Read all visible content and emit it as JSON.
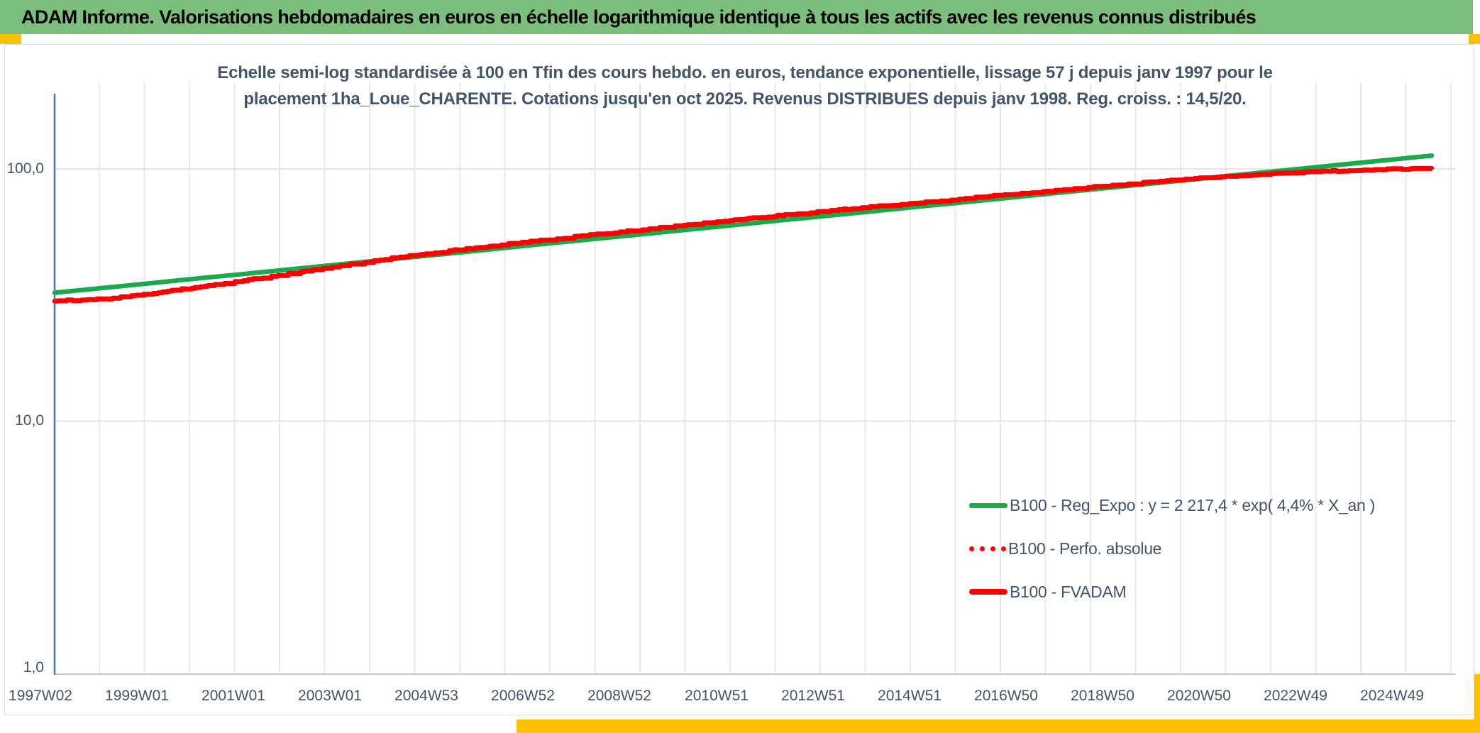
{
  "header": {
    "title": "ADAM Informe. Valorisations hebdomadaires en euros en échelle logarithmique identique à tous les actifs avec les revenus connus distribués"
  },
  "subtitle": {
    "line1": "Echelle semi-log standardisée à 100 en Tfin des cours hebdo. en euros, tendance exponentielle, lissage 57 j depuis janv 1997 pour le",
    "line2": "placement 1ha_Loue_CHARENTE. Cotations jusqu'en oct 2025. Revenus DISTRIBUES depuis janv 1998. Reg. croiss. : 14,5/20."
  },
  "colors": {
    "header_bg": "#7CBE7C",
    "accent_gold": "#FFC000",
    "green_line": "#1BA94C",
    "red_line": "#FF0000",
    "text_dark": "#44546A",
    "axis_blue": "#4472C4",
    "gridline": "#E7EAED"
  },
  "chart_data": {
    "type": "line",
    "y_scale": "log",
    "title": "Echelle semi-log standardisée à 100 en Tfin des cours hebdo. en euros, tendance exponentielle, lissage 57 j depuis janv 1997 pour le placement 1ha_Loue_CHARENTE. Cotations jusqu'en oct 2025. Revenus DISTRIBUES depuis janv 1998. Reg. croiss. : 14,5/20.",
    "xlabel": "",
    "ylabel": "",
    "ylim": [
      1,
      200
    ],
    "grid": "on",
    "legend_position": "inside-lower-right",
    "x_tick_labels": [
      "1997W02",
      "1999W01",
      "2001W01",
      "2003W01",
      "2004W53",
      "2006W52",
      "2008W52",
      "2010W51",
      "2012W51",
      "2014W51",
      "2016W50",
      "2018W50",
      "2020W50",
      "2022W49",
      "2024W49"
    ],
    "y_tick_labels": [
      "100,0",
      "10,0",
      "1,0"
    ],
    "x_years": [
      1997,
      1998,
      1999,
      2000,
      2001,
      2002,
      2003,
      2004,
      2005,
      2006,
      2007,
      2008,
      2009,
      2010,
      2011,
      2012,
      2013,
      2014,
      2015,
      2016,
      2017,
      2018,
      2019,
      2020,
      2021,
      2022,
      2023,
      2024,
      2025,
      2025.8
    ],
    "series": [
      {
        "name": "B100 - Reg_Expo : y = 2 217,4 * exp( 4,4% *  X_an )",
        "color": "#1BA94C",
        "style": "solid",
        "values": [
          32.3,
          33.7,
          35.2,
          36.8,
          38.4,
          40.1,
          41.9,
          43.8,
          45.7,
          47.7,
          49.9,
          52.1,
          54.4,
          56.8,
          59.3,
          62.0,
          64.7,
          67.6,
          70.6,
          73.7,
          77.0,
          80.4,
          84.0,
          87.7,
          91.6,
          95.7,
          99.9,
          104.4,
          109.0,
          112.9
        ]
      },
      {
        "name": "B100 - Perfo. absolue",
        "color": "#FF0000",
        "style": "dotted",
        "values": [
          29.9,
          30.4,
          31.9,
          34.0,
          36.2,
          38.6,
          41.3,
          44.1,
          46.6,
          49.1,
          51.6,
          54.1,
          56.7,
          59.4,
          62.1,
          64.9,
          67.6,
          70.4,
          73.2,
          76.2,
          79.2,
          82.4,
          85.5,
          88.8,
          91.9,
          94.4,
          96.7,
          98.4,
          99.6,
          100.0
        ]
      },
      {
        "name": "B100 - FVADAM",
        "color": "#FF0000",
        "style": "solid-step",
        "values": [
          29.9,
          30.4,
          31.9,
          34.0,
          36.2,
          38.6,
          41.3,
          44.1,
          46.6,
          49.1,
          51.6,
          54.1,
          56.7,
          59.4,
          62.1,
          64.9,
          67.6,
          70.4,
          73.2,
          76.2,
          79.2,
          82.4,
          85.5,
          88.8,
          91.9,
          94.4,
          96.7,
          98.4,
          99.6,
          100.0
        ]
      }
    ]
  }
}
